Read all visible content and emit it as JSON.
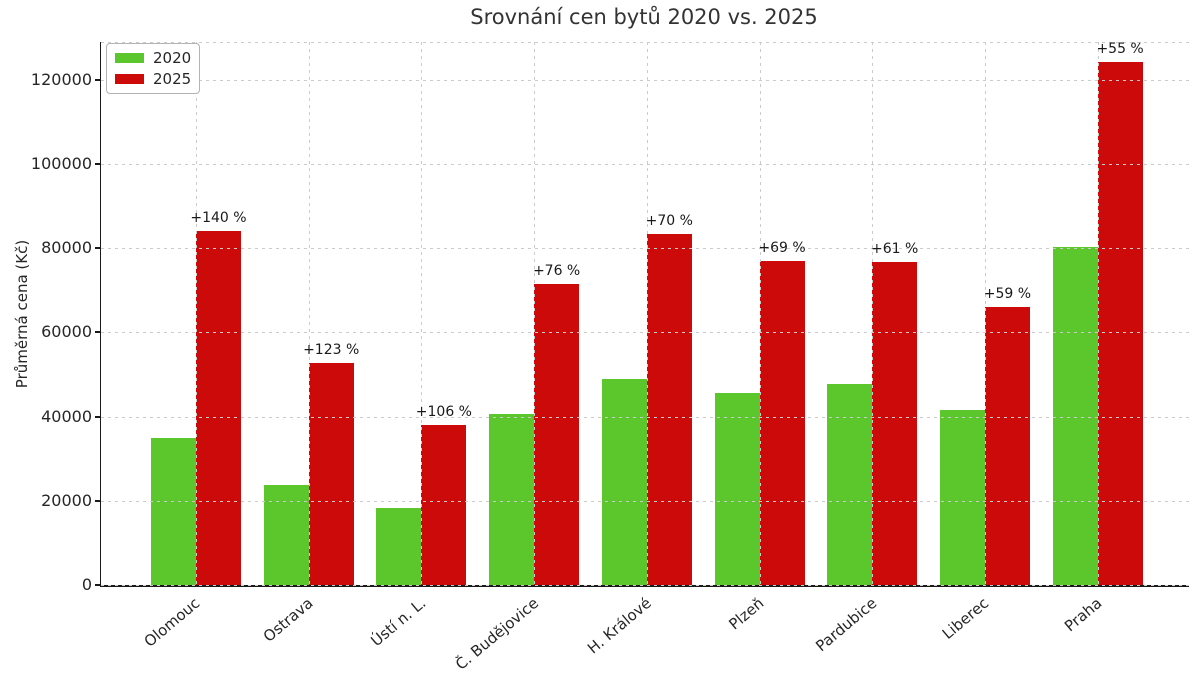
{
  "chart_data": {
    "type": "bar",
    "title": "Srovnání cen bytů 2020 vs. 2025",
    "xlabel": "",
    "ylabel": "Průměrná cena (Kč)",
    "categories": [
      "Olomouc",
      "Ostrava",
      "Ústí n. L.",
      "Č. Budějovice",
      "H. Králové",
      "Plzeň",
      "Pardubice",
      "Liberec",
      "Praha"
    ],
    "series": [
      {
        "name": "2020",
        "color": "#5cc72d",
        "values": [
          35000,
          23700,
          18400,
          40700,
          49000,
          45500,
          47700,
          41500,
          80200
        ]
      },
      {
        "name": "2025",
        "color": "#cc0a0a",
        "values": [
          84000,
          52850,
          37900,
          71600,
          83300,
          76900,
          76800,
          66000,
          124300
        ]
      }
    ],
    "annotations": [
      "+140 %",
      "+123 %",
      "+106 %",
      "+76 %",
      "+70 %",
      "+69 %",
      "+61 %",
      "+59 %",
      "+55 %"
    ],
    "y_ticks": [
      0,
      20000,
      40000,
      60000,
      80000,
      100000,
      120000
    ],
    "ylim": [
      0,
      129000
    ],
    "grid": "both-axes dashed, drawn above bars",
    "legend_position": "upper left",
    "colors": {
      "grid": "#cbcbcb",
      "spine": "#1a1a1a",
      "text": "#262626",
      "title": "#333333"
    }
  }
}
